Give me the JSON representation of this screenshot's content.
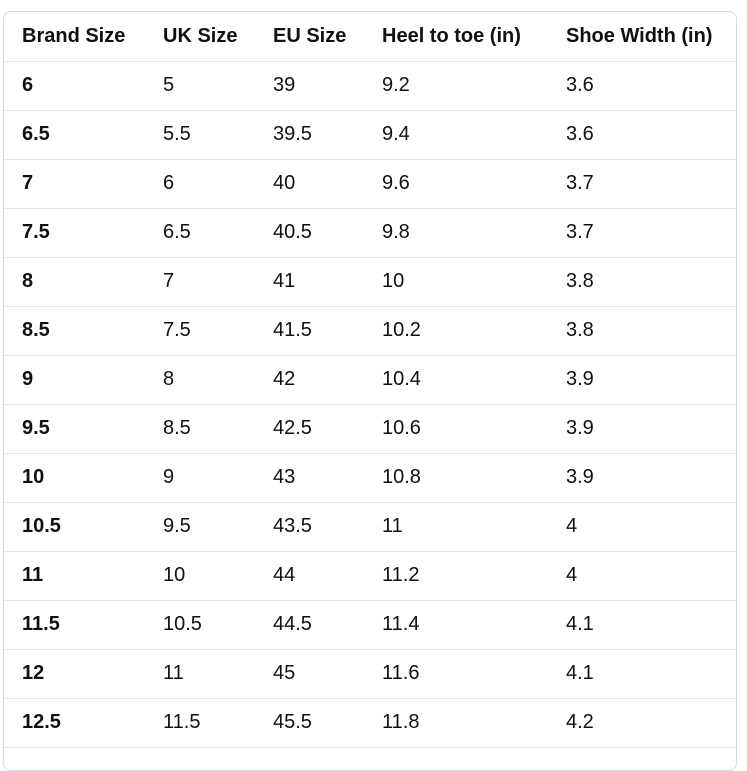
{
  "table": {
    "headers": [
      "Brand Size",
      "UK Size",
      "EU Size",
      "Heel to toe (in)",
      "Shoe Width (in)"
    ],
    "rows": [
      [
        "6",
        "5",
        "39",
        "9.2",
        "3.6"
      ],
      [
        "6.5",
        "5.5",
        "39.5",
        "9.4",
        "3.6"
      ],
      [
        "7",
        "6",
        "40",
        "9.6",
        "3.7"
      ],
      [
        "7.5",
        "6.5",
        "40.5",
        "9.8",
        "3.7"
      ],
      [
        "8",
        "7",
        "41",
        "10",
        "3.8"
      ],
      [
        "8.5",
        "7.5",
        "41.5",
        "10.2",
        "3.8"
      ],
      [
        "9",
        "8",
        "42",
        "10.4",
        "3.9"
      ],
      [
        "9.5",
        "8.5",
        "42.5",
        "10.6",
        "3.9"
      ],
      [
        "10",
        "9",
        "43",
        "10.8",
        "3.9"
      ],
      [
        "10.5",
        "9.5",
        "43.5",
        "11",
        "4"
      ],
      [
        "11",
        "10",
        "44",
        "11.2",
        "4"
      ],
      [
        "11.5",
        "10.5",
        "44.5",
        "11.4",
        "4.1"
      ],
      [
        "12",
        "11",
        "45",
        "11.6",
        "4.1"
      ],
      [
        "12.5",
        "11.5",
        "45.5",
        "11.8",
        "4.2"
      ]
    ]
  },
  "colors": {
    "text": "#0f1111",
    "border": "#d5d9d9",
    "row_divider": "#e3e6e6",
    "background": "#ffffff"
  }
}
